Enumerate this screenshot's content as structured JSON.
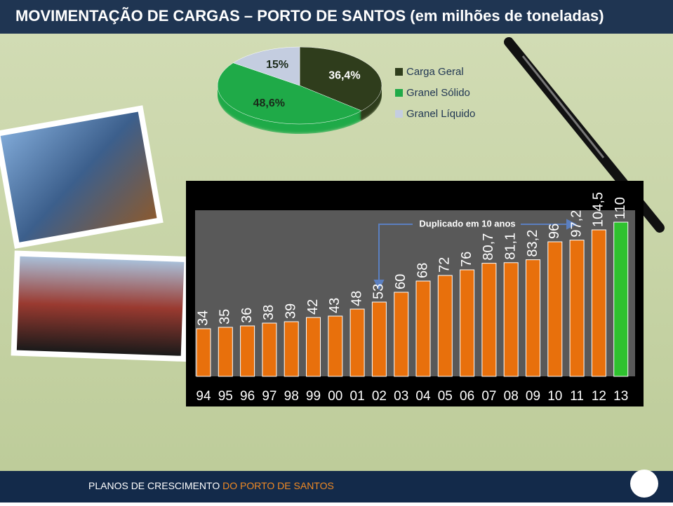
{
  "header": {
    "title": "MOVIMENTAÇÃO DE CARGAS – PORTO DE SANTOS (em milhões de toneladas)"
  },
  "chart_data": [
    {
      "type": "pie",
      "categories": [
        "Carga Geral",
        "Granel Sólido",
        "Granel Líquido"
      ],
      "values": [
        36.4,
        48.6,
        15
      ],
      "value_labels": [
        "36,4%",
        "48,6%",
        "15%"
      ],
      "colors": [
        "#2f3d1c",
        "#1faa48",
        "#c4cde0"
      ]
    },
    {
      "type": "bar",
      "annotation": "Duplicado em 10 anos",
      "categories": [
        "94",
        "95",
        "96",
        "97",
        "98",
        "99",
        "00",
        "01",
        "02",
        "03",
        "04",
        "05",
        "06",
        "07",
        "08",
        "09",
        "10",
        "11",
        "12",
        "13"
      ],
      "values": [
        34,
        35,
        36,
        38,
        39,
        42,
        43,
        48,
        53,
        60,
        68,
        72,
        76,
        80.7,
        81.1,
        83.2,
        96,
        97.2,
        104.5,
        110
      ],
      "value_labels": [
        "34",
        "35",
        "36",
        "38",
        "39",
        "42",
        "43",
        "48",
        "53",
        "60",
        "68",
        "72",
        "76",
        "80,7",
        "81,1",
        "83,2",
        "96",
        "97,2",
        "104,5",
        "110"
      ],
      "colors": [
        "#e8700c",
        "#e8700c",
        "#e8700c",
        "#e8700c",
        "#e8700c",
        "#e8700c",
        "#e8700c",
        "#e8700c",
        "#e8700c",
        "#e8700c",
        "#e8700c",
        "#e8700c",
        "#e8700c",
        "#e8700c",
        "#e8700c",
        "#e8700c",
        "#e8700c",
        "#e8700c",
        "#e8700c",
        "#2fc22f"
      ]
    }
  ],
  "footer": {
    "text_a": "PLANOS DE CRESCIMENTO",
    "text_b": "DO PORTO DE SANTOS"
  }
}
